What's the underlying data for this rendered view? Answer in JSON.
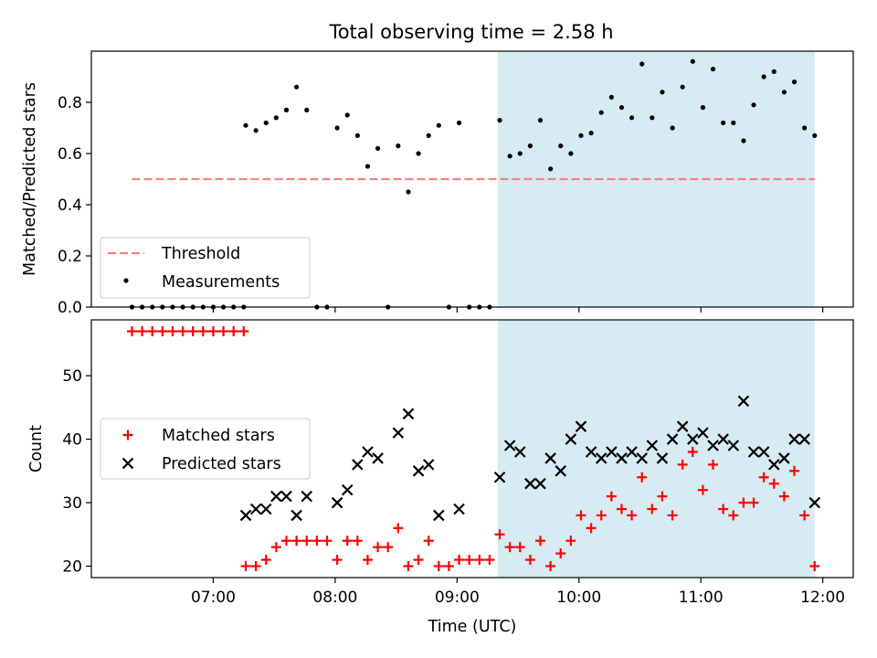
{
  "chart_data": [
    {
      "type": "scatter",
      "title": "Total observing time = 2.58 h",
      "xlabel": "",
      "ylabel": "Matched/Predicted stars",
      "ylim": [
        0,
        1.0
      ],
      "yticks": [
        "0.0",
        "0.2",
        "0.4",
        "0.6",
        "0.8"
      ],
      "ytick_values": [
        0,
        0.2,
        0.4,
        0.6,
        0.8
      ],
      "highlight_span": [
        "09:20",
        "11:56"
      ],
      "highlight_color": "#add8e6",
      "threshold": {
        "name": "Threshold",
        "value": 0.5,
        "x_range": [
          "06:20",
          "11:56"
        ],
        "color": "#ff7f7f"
      },
      "legend_position": "lower left",
      "series": [
        {
          "name": "Measurements",
          "color": "#000000",
          "x": [
            "06:20",
            "06:25",
            "06:30",
            "06:35",
            "06:40",
            "06:45",
            "06:50",
            "06:55",
            "07:00",
            "07:05",
            "07:10",
            "07:15",
            "07:16",
            "07:21",
            "07:26",
            "07:31",
            "07:36",
            "07:41",
            "07:46",
            "07:51",
            "07:56",
            "08:01",
            "08:06",
            "08:11",
            "08:16",
            "08:21",
            "08:26",
            "08:31",
            "08:36",
            "08:41",
            "08:46",
            "08:51",
            "08:56",
            "09:01",
            "09:06",
            "09:11",
            "09:16",
            "09:21",
            "09:26",
            "09:31",
            "09:36",
            "09:41",
            "09:46",
            "09:51",
            "09:56",
            "10:01",
            "10:06",
            "10:11",
            "10:16",
            "10:21",
            "10:26",
            "10:31",
            "10:36",
            "10:41",
            "10:46",
            "10:51",
            "10:56",
            "11:01",
            "11:06",
            "11:11",
            "11:16",
            "11:21",
            "11:26",
            "11:31",
            "11:36",
            "11:41",
            "11:46",
            "11:51",
            "11:56"
          ],
          "values": [
            0,
            0,
            0,
            0,
            0,
            0,
            0,
            0,
            0,
            0,
            0,
            0,
            0.71,
            0.69,
            0.72,
            0.74,
            0.77,
            0.86,
            0.77,
            0,
            0,
            0.7,
            0.75,
            0.67,
            0.55,
            0.62,
            0,
            0.63,
            0.45,
            0.6,
            0.67,
            0.71,
            0,
            0.72,
            0,
            0,
            0,
            0.73,
            0.59,
            0.6,
            0.63,
            0.73,
            0.54,
            0.63,
            0.6,
            0.67,
            0.68,
            0.76,
            0.82,
            0.78,
            0.74,
            0.95,
            0.74,
            0.84,
            0.7,
            0.86,
            0.96,
            0.78,
            0.93,
            0.72,
            0.72,
            0.65,
            0.79,
            0.9,
            0.92,
            0.84,
            0.88,
            0.7,
            0.67
          ]
        }
      ]
    },
    {
      "type": "scatter",
      "title": "",
      "xlabel": "Time (UTC)",
      "ylabel": "Count",
      "ylim": [
        18.2,
        58.8
      ],
      "yticks": [
        "20",
        "30",
        "40",
        "50"
      ],
      "ytick_values": [
        20,
        30,
        40,
        50
      ],
      "xticks": [
        "07:00",
        "08:00",
        "09:00",
        "10:00",
        "11:00",
        "12:00"
      ],
      "highlight_span": [
        "09:20",
        "11:56"
      ],
      "highlight_color": "#add8e6",
      "legend_position": "center left",
      "series": [
        {
          "name": "Matched stars",
          "color": "#ff0000",
          "marker": "plus",
          "x": [
            "06:20",
            "06:25",
            "06:30",
            "06:35",
            "06:40",
            "06:45",
            "06:50",
            "06:55",
            "07:00",
            "07:05",
            "07:10",
            "07:15",
            "07:16",
            "07:21",
            "07:26",
            "07:31",
            "07:36",
            "07:41",
            "07:46",
            "07:51",
            "07:56",
            "08:01",
            "08:06",
            "08:11",
            "08:16",
            "08:21",
            "08:26",
            "08:31",
            "08:36",
            "08:41",
            "08:46",
            "08:51",
            "08:56",
            "09:01",
            "09:06",
            "09:11",
            "09:16",
            "09:21",
            "09:26",
            "09:31",
            "09:36",
            "09:41",
            "09:46",
            "09:51",
            "09:56",
            "10:01",
            "10:06",
            "10:11",
            "10:16",
            "10:21",
            "10:26",
            "10:31",
            "10:36",
            "10:41",
            "10:46",
            "10:51",
            "10:56",
            "11:01",
            "11:06",
            "11:11",
            "11:16",
            "11:21",
            "11:26",
            "11:31",
            "11:36",
            "11:41",
            "11:46",
            "11:51",
            "11:56"
          ],
          "values": [
            57,
            57,
            57,
            57,
            57,
            57,
            57,
            57,
            57,
            57,
            57,
            57,
            20,
            20,
            21,
            23,
            24,
            24,
            24,
            24,
            24,
            21,
            24,
            24,
            21,
            23,
            23,
            26,
            20,
            21,
            24,
            20,
            20,
            21,
            21,
            21,
            21,
            25,
            23,
            23,
            21,
            24,
            20,
            22,
            24,
            28,
            26,
            28,
            31,
            29,
            28,
            34,
            29,
            31,
            28,
            36,
            38,
            32,
            36,
            29,
            28,
            30,
            30,
            34,
            33,
            31,
            35,
            28,
            20
          ]
        },
        {
          "name": "Predicted stars",
          "color": "#000000",
          "marker": "x",
          "x": [
            "07:16",
            "07:21",
            "07:26",
            "07:31",
            "07:36",
            "07:41",
            "07:46",
            "08:01",
            "08:06",
            "08:11",
            "08:16",
            "08:21",
            "08:31",
            "08:36",
            "08:41",
            "08:46",
            "08:51",
            "09:01",
            "09:21",
            "09:26",
            "09:31",
            "09:36",
            "09:41",
            "09:46",
            "09:51",
            "09:56",
            "10:01",
            "10:06",
            "10:11",
            "10:16",
            "10:21",
            "10:26",
            "10:31",
            "10:36",
            "10:41",
            "10:46",
            "10:51",
            "10:56",
            "11:01",
            "11:06",
            "11:11",
            "11:16",
            "11:21",
            "11:26",
            "11:31",
            "11:36",
            "11:41",
            "11:46",
            "11:51",
            "11:56"
          ],
          "values": [
            28,
            29,
            29,
            31,
            31,
            28,
            31,
            30,
            32,
            36,
            38,
            37,
            41,
            44,
            35,
            36,
            28,
            29,
            34,
            39,
            38,
            33,
            33,
            37,
            35,
            40,
            42,
            38,
            37,
            38,
            37,
            38,
            37,
            39,
            37,
            40,
            42,
            40,
            41,
            39,
            40,
            39,
            46,
            38,
            38,
            36,
            37,
            40,
            40,
            30
          ]
        }
      ]
    }
  ]
}
